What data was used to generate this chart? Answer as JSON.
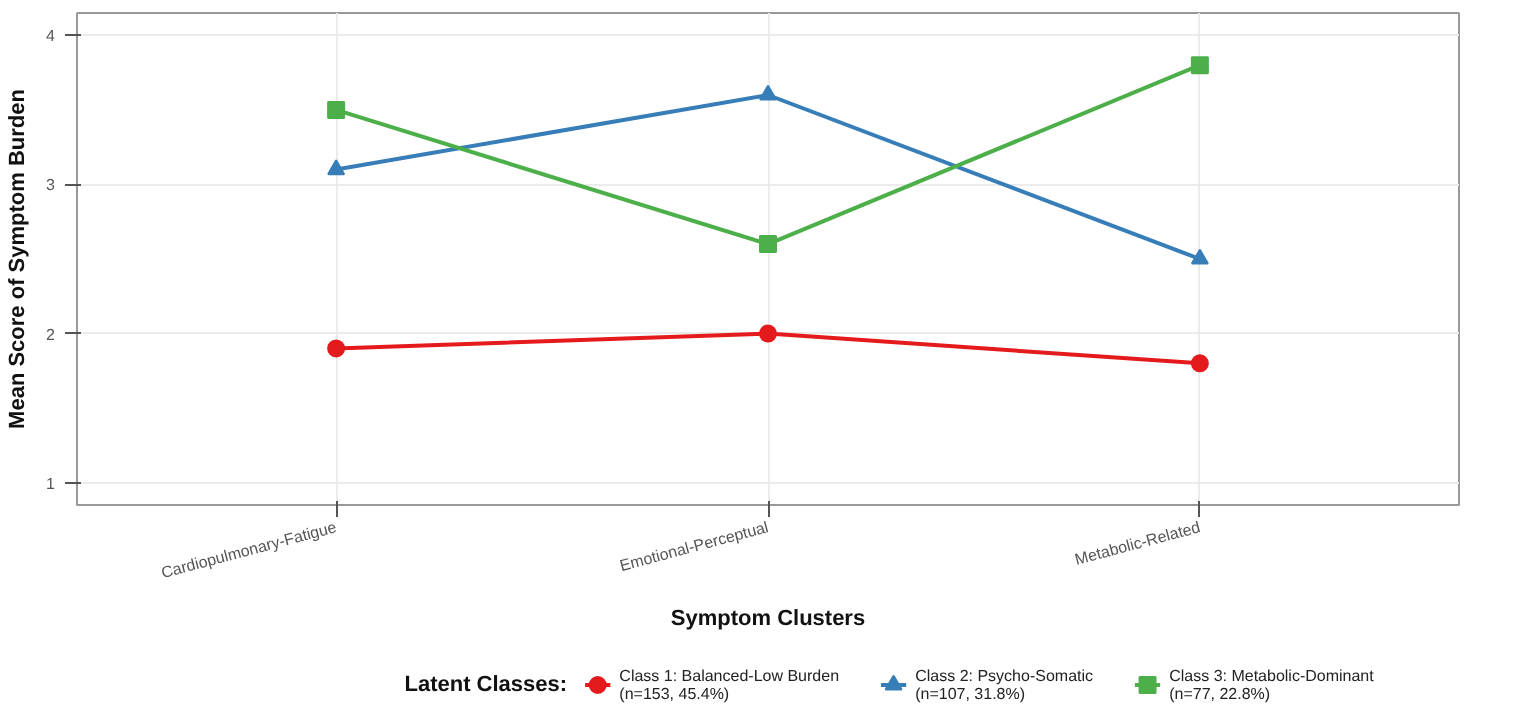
{
  "chart_data": {
    "type": "line",
    "xlabel": "Symptom Clusters",
    "ylabel": "Mean Score of Symptom Burden",
    "legend_title": "Latent Classes:",
    "categories": [
      "Cardiopulmonary-Fatigue",
      "Emotional-Perceptual",
      "Metabolic-Related"
    ],
    "series": [
      {
        "name": "Class 1: Balanced-Low Burden\n(n=153, 45.4%)",
        "color": "#e41a1c",
        "values": [
          1.9,
          2.0,
          1.8
        ],
        "marker": "circle"
      },
      {
        "name": "Class 2: Psycho-Somatic\n(n=107, 31.8%)",
        "color": "#377eb8",
        "values": [
          3.1,
          3.6,
          2.5
        ],
        "marker": "triangle"
      },
      {
        "name": "Class 3: Metabolic-Dominant\n(n=77, 22.8%)",
        "color": "#4daf4a",
        "values": [
          3.5,
          2.6,
          3.8
        ],
        "marker": "square"
      }
    ],
    "ylim": [
      0.85,
      4.15
    ],
    "yticks": [
      1,
      2,
      3,
      4
    ],
    "grid": true,
    "legend": "bottom",
    "line_style": "solid"
  }
}
